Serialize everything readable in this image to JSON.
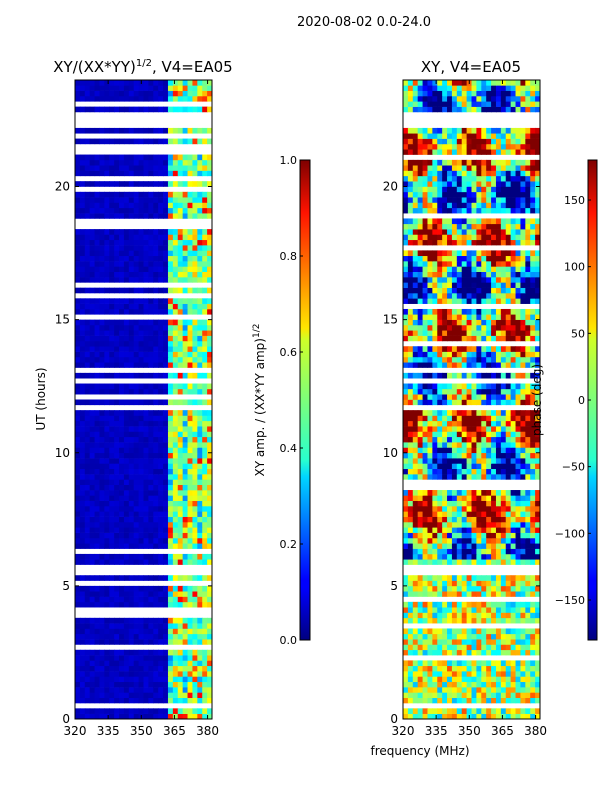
{
  "suptitle": "2020-08-02 0.0-24.0",
  "chart_data": [
    {
      "id": "left",
      "type": "heatmap",
      "title_main": "XY/(XX*YY)",
      "title_exp": "1/2",
      "title_tail": ", V4=EA05",
      "ylabel": "UT (hours)",
      "xlabel": "",
      "xlim": [
        320,
        382
      ],
      "ylim": [
        0,
        24
      ],
      "xticks": [
        320,
        335,
        350,
        365,
        380
      ],
      "yticks": [
        0,
        5,
        10,
        15,
        20
      ],
      "colorbar": {
        "colormap": "jet",
        "range": [
          0.0,
          1.0
        ],
        "ticks": [
          0.0,
          0.2,
          0.4,
          0.6,
          0.8,
          1.0
        ],
        "tick_labels": [
          "0.0",
          "0.2",
          "0.4",
          "0.6",
          "0.8",
          "1.0"
        ],
        "label_main": "XY amp. / (XX*YY amp)",
        "label_exp": "1/2"
      },
      "description": "mostly low amplitude (~0.05) below 361 MHz; higher amplitude bands (0.3-0.8) between 361 and 382 MHz",
      "blank_rows_hours": [
        5.6,
        5.75,
        22.4,
        22.6,
        18.6,
        19.9,
        20.3
      ]
    },
    {
      "id": "right",
      "type": "heatmap",
      "title_main": "XY, V4=EA05",
      "ylabel": "",
      "xlabel": "frequency (MHz)",
      "xlim": [
        320,
        382
      ],
      "ylim": [
        0,
        24
      ],
      "xticks": [
        320,
        335,
        350,
        365,
        380
      ],
      "yticks": [
        0,
        5,
        10,
        15,
        20
      ],
      "colorbar": {
        "colormap": "jet",
        "range": [
          -180,
          180
        ],
        "ticks": [
          -150,
          -100,
          -50,
          0,
          50,
          100,
          150
        ],
        "tick_labels": [
          "−150",
          "−100",
          "−50",
          "0",
          "50",
          "100",
          "150"
        ],
        "label": "phase (deg)"
      },
      "description": "noisy phase in degrees spanning full -180 to 180 range",
      "blank_rows_hours": [
        5.6,
        5.75,
        8.8,
        22.4,
        22.6
      ]
    }
  ]
}
